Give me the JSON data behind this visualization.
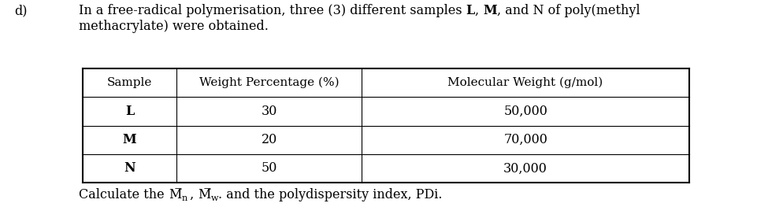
{
  "label_d": "d)",
  "intro_parts": [
    [
      "In a free-radical polymerisation, three (3) different samples ",
      false
    ],
    [
      "L",
      true
    ],
    [
      ", ",
      false
    ],
    [
      "M",
      true
    ],
    [
      ", and N of poly(methyl",
      false
    ]
  ],
  "intro_line2": "methacrylate) were obtained.",
  "table_headers": [
    "Sample",
    "Weight Percentage (%)",
    "Molecular Weight (g/mol)"
  ],
  "table_rows": [
    [
      "L",
      "30",
      "50,000"
    ],
    [
      "M",
      "20",
      "70,000"
    ],
    [
      "N",
      "50",
      "30,000"
    ]
  ],
  "bg_color": "#ffffff",
  "text_color": "#000000",
  "font_size": 11.5
}
